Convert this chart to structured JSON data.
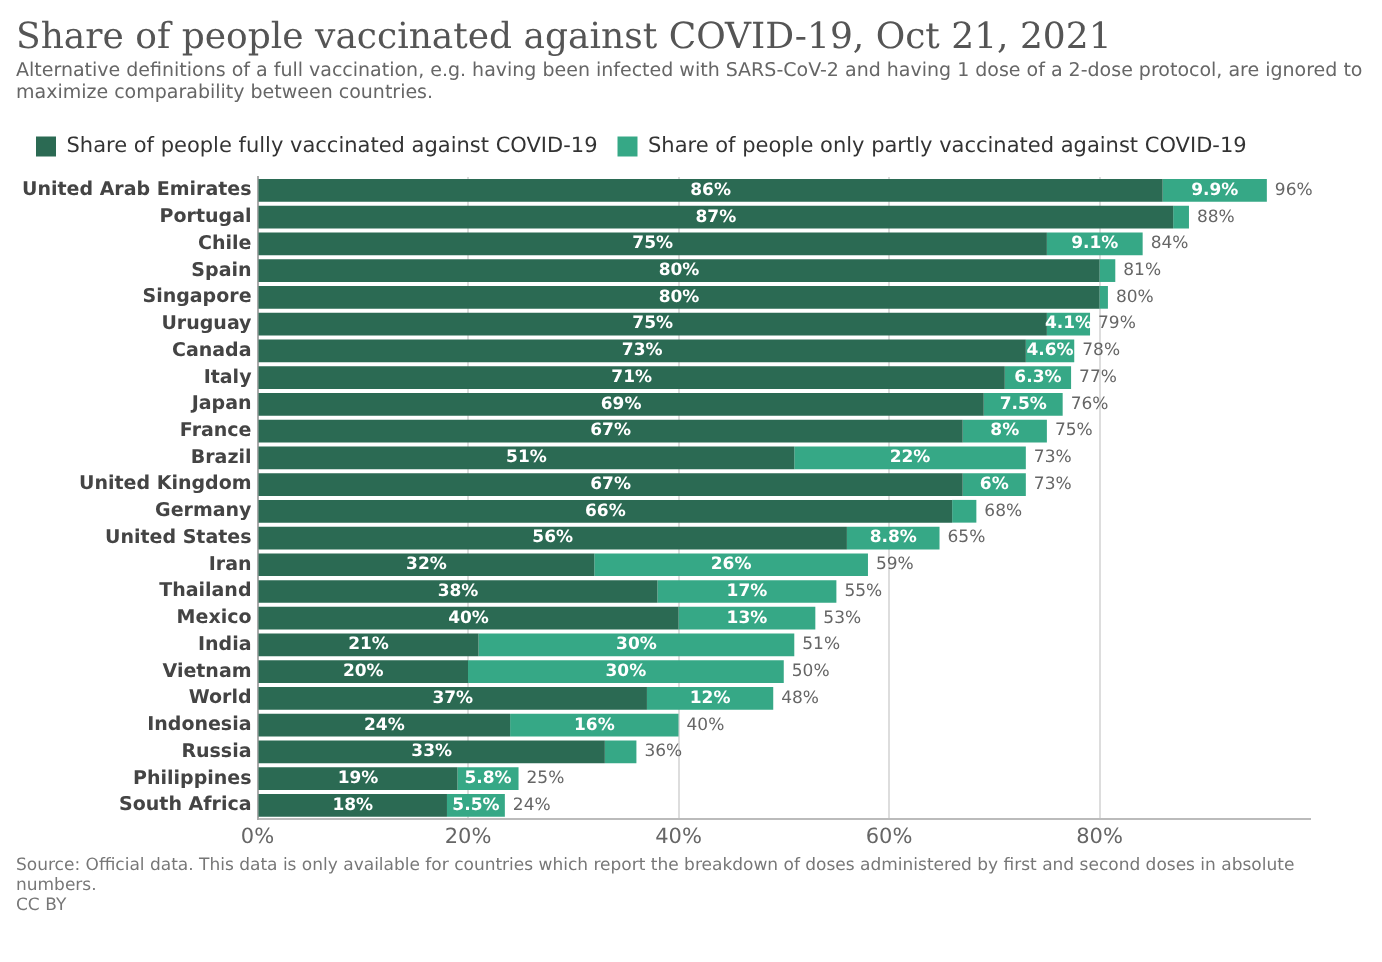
{
  "chart_data": {
    "type": "bar",
    "orientation": "horizontal",
    "stacked": true,
    "title": "Share of people vaccinated against COVID-19, Oct 21, 2021",
    "subtitle": "Alternative definitions of a full vaccination, e.g. having been infected with SARS-CoV-2 and having 1 dose of a 2-dose protocol, are ignored to maximize comparability between countries.",
    "categories": [
      "United Arab Emirates",
      "Portugal",
      "Chile",
      "Spain",
      "Singapore",
      "Uruguay",
      "Canada",
      "Italy",
      "Japan",
      "France",
      "Brazil",
      "United Kingdom",
      "Germany",
      "United States",
      "Iran",
      "Thailand",
      "Mexico",
      "India",
      "Vietnam",
      "World",
      "Indonesia",
      "Russia",
      "Philippines",
      "South Africa"
    ],
    "series": [
      {
        "name": "Share of people fully vaccinated against COVID-19",
        "color": "#2b6a53",
        "values": [
          86,
          87,
          75,
          80,
          80,
          75,
          73,
          71,
          69,
          67,
          51,
          67,
          66,
          56,
          32,
          38,
          40,
          21,
          20,
          37,
          24,
          33,
          19,
          18
        ],
        "value_labels": [
          "86%",
          "87%",
          "75%",
          "80%",
          "80%",
          "75%",
          "73%",
          "71%",
          "69%",
          "67%",
          "51%",
          "67%",
          "66%",
          "56%",
          "32%",
          "38%",
          "40%",
          "21%",
          "20%",
          "37%",
          "24%",
          "33%",
          "19%",
          "18%"
        ]
      },
      {
        "name": "Share of people only partly vaccinated against COVID-19",
        "color": "#36a886",
        "values": [
          9.9,
          1.5,
          9.1,
          1.5,
          0.8,
          4.1,
          4.6,
          6.3,
          7.5,
          8,
          22,
          6,
          2.3,
          8.8,
          26,
          17,
          13,
          30,
          30,
          12,
          16,
          3,
          5.8,
          5.5
        ],
        "value_labels": [
          "9.9%",
          null,
          "9.1%",
          null,
          null,
          "4.1%",
          "4.6%",
          "6.3%",
          "7.5%",
          "8%",
          "22%",
          "6%",
          null,
          "8.8%",
          "26%",
          "17%",
          "13%",
          "30%",
          "30%",
          "12%",
          "16%",
          null,
          "5.8%",
          "5.5%"
        ]
      }
    ],
    "totals": [
      "96%",
      "88%",
      "84%",
      "81%",
      "80%",
      "79%",
      "78%",
      "77%",
      "76%",
      "75%",
      "73%",
      "73%",
      "68%",
      "65%",
      "59%",
      "55%",
      "53%",
      "51%",
      "50%",
      "48%",
      "40%",
      "36%",
      "25%",
      "24%"
    ],
    "xlim": [
      0,
      100
    ],
    "xticks": [
      {
        "value": 0,
        "label": "0%"
      },
      {
        "value": 20,
        "label": "20%"
      },
      {
        "value": 40,
        "label": "40%"
      },
      {
        "value": 60,
        "label": "60%"
      },
      {
        "value": 80,
        "label": "80%"
      }
    ],
    "grid": "x",
    "legend": "top left",
    "annotations": [
      "Source: Official data. This data is only available for countries which report the breakdown of doses administered by first and second doses in absolute numbers.",
      "CC BY"
    ]
  }
}
